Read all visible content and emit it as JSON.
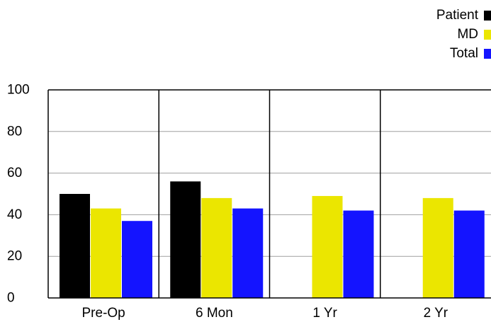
{
  "chart_data": {
    "type": "bar",
    "title": "",
    "xlabel": "",
    "ylabel": "",
    "categories": [
      "Pre-Op",
      "6 Mon",
      "1 Yr",
      "2 Yr"
    ],
    "series": [
      {
        "name": "Patient",
        "color": "#000000",
        "values": [
          50,
          56,
          null,
          null
        ]
      },
      {
        "name": "MD",
        "color": "#ebe600",
        "values": [
          43,
          48,
          49,
          48
        ]
      },
      {
        "name": "Total",
        "color": "#1414ff",
        "values": [
          37,
          43,
          42,
          42
        ]
      }
    ],
    "ylim": [
      0,
      100
    ],
    "yticks": [
      0,
      20,
      40,
      60,
      80,
      100
    ],
    "grid": true,
    "legend_position": "top-right"
  }
}
